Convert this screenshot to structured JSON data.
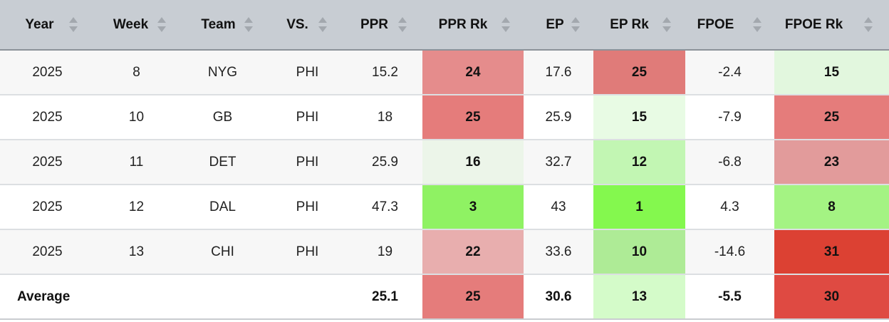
{
  "table": {
    "headers": [
      {
        "label": "Year"
      },
      {
        "label": "Week"
      },
      {
        "label": "Team"
      },
      {
        "label": "VS."
      },
      {
        "label": "PPR"
      },
      {
        "label": "PPR Rk"
      },
      {
        "label": "EP"
      },
      {
        "label": "EP Rk"
      },
      {
        "label": "FPOE"
      },
      {
        "label": "FPOE Rk"
      }
    ],
    "rows": [
      {
        "cells": [
          "2025",
          "8",
          "NYG",
          "PHI",
          "15.2",
          "24",
          "17.6",
          "25",
          "-2.4",
          "15"
        ],
        "colors": {
          "5": "#e58c8c",
          "7": "#e07b79",
          "9": "#e2f7de"
        }
      },
      {
        "cells": [
          "2025",
          "10",
          "GB",
          "PHI",
          "18",
          "25",
          "25.9",
          "15",
          "-7.9",
          "25"
        ],
        "colors": {
          "5": "#e57c7b",
          "7": "#e8fbe4",
          "9": "#e57c7b"
        }
      },
      {
        "cells": [
          "2025",
          "11",
          "DET",
          "PHI",
          "25.9",
          "16",
          "32.7",
          "12",
          "-6.8",
          "23"
        ],
        "colors": {
          "5": "#ecf5e9",
          "7": "#c2f6b3",
          "9": "#e29b9b"
        }
      },
      {
        "cells": [
          "2025",
          "12",
          "DAL",
          "PHI",
          "47.3",
          "3",
          "43",
          "1",
          "4.3",
          "8"
        ],
        "colors": {
          "5": "#8ff263",
          "7": "#84f84e",
          "9": "#a4f383"
        }
      },
      {
        "cells": [
          "2025",
          "13",
          "CHI",
          "PHI",
          "19",
          "22",
          "33.6",
          "10",
          "-14.6",
          "31"
        ],
        "colors": {
          "5": "#e8aeae",
          "7": "#aeeb96",
          "9": "#dc4133"
        }
      }
    ],
    "average": {
      "label": "Average",
      "ppr": "25.1",
      "ppr_rk": "25",
      "ep": "30.6",
      "ep_rk": "13",
      "fpoe": "-5.5",
      "fpoe_rk": "30",
      "colors": {
        "ppr_rk": "#e57c7b",
        "ep_rk": "#d4fbc9",
        "fpoe_rk": "#df4a42"
      }
    }
  }
}
